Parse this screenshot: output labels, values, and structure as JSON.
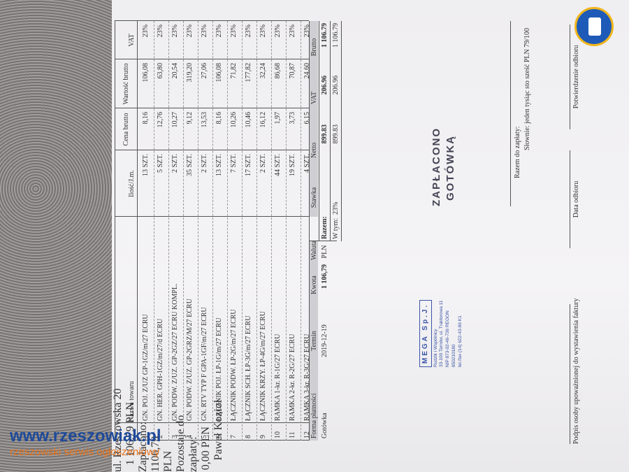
{
  "header": {
    "address": "ul. Rzeszowska 20"
  },
  "items": {
    "columns": [
      "Nazwa towaru",
      "Ilość/J.m.",
      "Cena brutto",
      "Wartość brutto",
      "VAT"
    ],
    "rows": [
      [
        "1",
        "GN. POJ. Z/UZ GP-1GZ/m/27 ECRU",
        "13 SZT.",
        "8,16",
        "106,08",
        "23%"
      ],
      [
        "2",
        "GN. HER. GPH-1GZ/m/27/d ECRU",
        "5 SZT.",
        "12,76",
        "63,80",
        "23%"
      ],
      [
        "3",
        "GN. PODW. Z/UZ. GP-2GZ/27 ECRU KOMPL.",
        "2 SZT.",
        "10,27",
        "20,54",
        "23%"
      ],
      [
        "4",
        "GN. PODW. Z/UZ. GP-2GRZ/M/27 ECRU",
        "35 SZT.",
        "9,12",
        "319,20",
        "23%"
      ],
      [
        "5",
        "GN. RTV TYP F GPA-1GF/m/27 ECRU",
        "2 SZT.",
        "13,53",
        "27,06",
        "23%"
      ],
      [
        "6",
        "ŁĄCZNIK POJ. ŁP-1G/m/27 ECRU",
        "13 SZT.",
        "8,16",
        "106,08",
        "23%"
      ],
      [
        "7",
        "ŁĄCZNIK PODW. ŁP-2G/m/27 ECRU",
        "7 SZT.",
        "10,26",
        "71,82",
        "23%"
      ],
      [
        "8",
        "ŁĄCZNIK SCH. ŁP-3G/m/27 ECRU",
        "17 SZT.",
        "10,46",
        "177,82",
        "23%"
      ],
      [
        "9",
        "ŁĄCZNIK KRZY. ŁP-4G/m/27 ECRU",
        "2 SZT.",
        "16,12",
        "32,24",
        "23%"
      ],
      [
        "10",
        "RAMKA 1-kr. R-1G/27 ECRU",
        "44 SZT.",
        "1,97",
        "86,68",
        "23%"
      ],
      [
        "11",
        "RAMKA 2-kr. R-2G/27 ECRU",
        "19 SZT.",
        "3,73",
        "70,87",
        "23%"
      ],
      [
        "12",
        "RAMKA 3-kr. R-3G/27 ECRU",
        "4 SZT.",
        "6,15",
        "24,60",
        "23%"
      ]
    ]
  },
  "payment": {
    "columns": [
      "Forma płatności",
      "Termin",
      "Kwota",
      "Waluta"
    ],
    "row": [
      "Gotówka",
      "2019-12-19",
      "1 106,79",
      "PLN"
    ]
  },
  "summary": {
    "columns": [
      "Stawka",
      "Netto",
      "VAT",
      "Brutto"
    ],
    "rows": [
      [
        "Razem:",
        "",
        "899.83",
        "206.96",
        "1 106.79"
      ],
      [
        "W tym:",
        "23%",
        "899.83",
        "206.96",
        "1 106.79"
      ]
    ]
  },
  "stamp": {
    "line1": "ZAPŁACONO",
    "line2": "GOTÓWKĄ"
  },
  "seller_stamp": {
    "name": "MEGA Sp.J.",
    "lines": [
      "Rudzik i Wspólnicy",
      "33-100 Tarnów, ul. Traktorowa 11",
      "NIP 873-02-46-736 REGON 850210180",
      "tel./fax (14) 622-43-86   K1"
    ]
  },
  "totals": {
    "due_label": "Razem do zapłaty:",
    "due": "1 106,79 PLN",
    "words": "Słownie: jeden tysiąc sto sześć PLN 79/100",
    "paid_label": "Zapłacono:",
    "paid": "1106,79 PLN",
    "remaining_label": "Pozostaje do zapłaty:",
    "remaining": "0,00 PLN"
  },
  "signatures": {
    "issuer": "Paweł Kozioł",
    "issuer_caption": "Podpis osoby upoważnionej do wystawienia faktury",
    "date_caption": "Data odbioru",
    "receipt_caption": "Potwierdzenie odbioru"
  },
  "watermark": {
    "site": "www.rzeszowiak.pl",
    "tagline": "rzeszowski serwis ogłoszeniowy"
  }
}
